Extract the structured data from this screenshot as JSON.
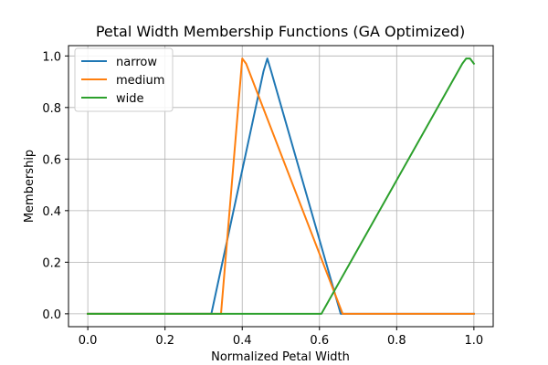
{
  "chart_data": {
    "type": "line",
    "title": "Petal Width Membership Functions (GA Optimized)",
    "xlabel": "Normalized Petal Width",
    "ylabel": "Membership",
    "xlim": [
      -0.05,
      1.05
    ],
    "ylim": [
      -0.05,
      1.04
    ],
    "xticks": [
      0.0,
      0.2,
      0.4,
      0.6,
      0.8,
      1.0
    ],
    "xtick_labels": [
      "0.0",
      "0.2",
      "0.4",
      "0.6",
      "0.8",
      "1.0"
    ],
    "yticks": [
      0.0,
      0.2,
      0.4,
      0.6,
      0.8,
      1.0
    ],
    "ytick_labels": [
      "0.0",
      "0.2",
      "0.4",
      "0.6",
      "0.8",
      "1.0"
    ],
    "grid": true,
    "legend_position": "top-left",
    "series": [
      {
        "name": "narrow",
        "color": "#1f77b4",
        "points": [
          [
            0.0,
            0.0
          ],
          [
            0.32,
            0.0
          ],
          [
            0.455,
            0.94
          ],
          [
            0.465,
            0.99
          ],
          [
            0.475,
            0.94
          ],
          [
            0.655,
            0.0
          ],
          [
            1.0,
            0.0
          ]
        ]
      },
      {
        "name": "medium",
        "color": "#ff7f0e",
        "points": [
          [
            0.0,
            0.0
          ],
          [
            0.345,
            0.0
          ],
          [
            0.4,
            0.99
          ],
          [
            0.41,
            0.97
          ],
          [
            0.66,
            0.0
          ],
          [
            1.0,
            0.0
          ]
        ]
      },
      {
        "name": "wide",
        "color": "#2ca02c",
        "points": [
          [
            0.0,
            0.0
          ],
          [
            0.605,
            0.0
          ],
          [
            0.97,
            0.97
          ],
          [
            0.98,
            0.99
          ],
          [
            0.99,
            0.99
          ],
          [
            1.0,
            0.97
          ]
        ]
      }
    ]
  }
}
